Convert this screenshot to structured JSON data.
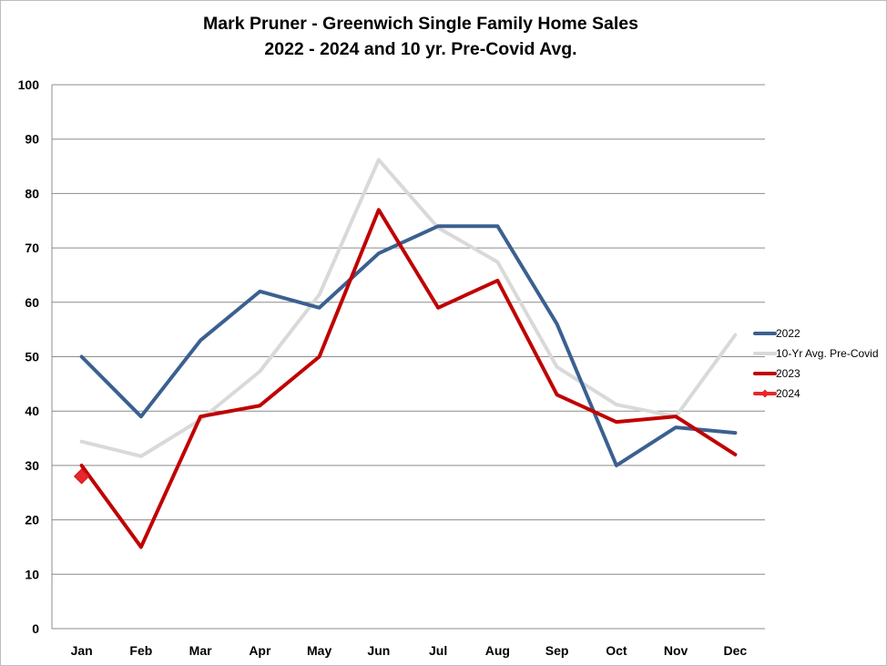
{
  "chart_data": {
    "type": "line",
    "title": "Mark Pruner - Greenwich Single Family Home Sales",
    "subtitle": "2022 - 2024 and 10 yr. Pre-Covid Avg.",
    "categories": [
      "Jan",
      "Feb",
      "Mar",
      "Apr",
      "May",
      "Jun",
      "Jul",
      "Aug",
      "Sep",
      "Oct",
      "Nov",
      "Dec"
    ],
    "ylim": [
      0,
      100
    ],
    "yticks": [
      "0",
      "10",
      "20",
      "30",
      "40",
      "50",
      "60",
      "70",
      "80",
      "90",
      "100"
    ],
    "grid": true,
    "legend_position": "right",
    "series": [
      {
        "name": "2022",
        "color": "#3b6090",
        "marker": "none",
        "values": [
          50,
          39,
          53,
          62,
          59,
          69,
          74,
          74,
          56,
          30,
          37,
          36
        ]
      },
      {
        "name": "10-Yr Avg. Pre-Covid",
        "color": "#d9d9d9",
        "marker": "none",
        "values": [
          34.4,
          31.7,
          38.4,
          47.3,
          61.4,
          86.2,
          73.7,
          67.4,
          48.1,
          41.2,
          39,
          54
        ]
      },
      {
        "name": "2023",
        "color": "#c00000",
        "marker": "none",
        "values": [
          30,
          15,
          39,
          41,
          50,
          77,
          59,
          64,
          43,
          38,
          39,
          32
        ]
      },
      {
        "name": "2024",
        "color": "#e8262b",
        "marker": "diamond",
        "values": [
          28,
          null,
          null,
          null,
          null,
          null,
          null,
          null,
          null,
          null,
          null,
          null
        ]
      }
    ]
  }
}
